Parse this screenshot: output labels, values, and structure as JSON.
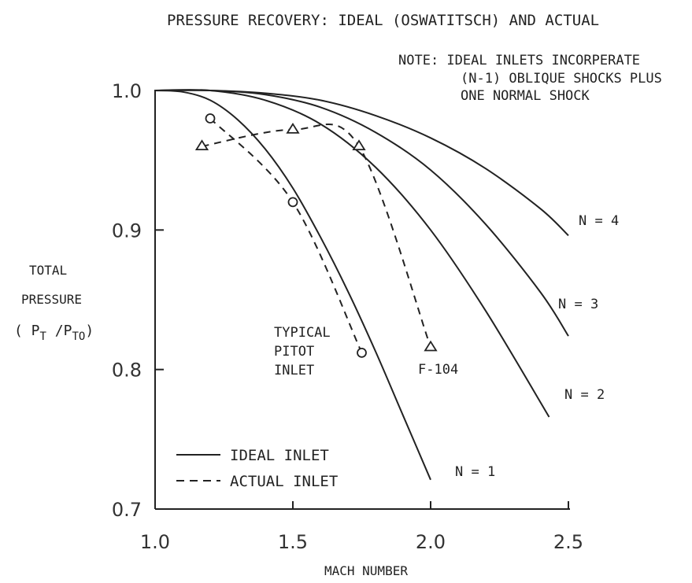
{
  "chart_data": {
    "type": "line",
    "title": "PRESSURE RECOVERY:  IDEAL (OSWATITSCH) AND ACTUAL",
    "note": [
      "NOTE:  IDEAL INLETS INCORPERATE",
      "(N-1) OBLIQUE SHOCKS  PLUS",
      "ONE NORMAL SHOCK"
    ],
    "xlabel": "MACH NUMBER",
    "ylabel": [
      "TOTAL",
      "PRESSURE",
      "( P",
      "T",
      " /P",
      "TO",
      ")"
    ],
    "xlim": [
      1.0,
      2.5
    ],
    "ylim": [
      0.7,
      1.0
    ],
    "xticks": [
      1.0,
      1.5,
      2.0,
      2.5
    ],
    "xtick_labels": [
      "1.0",
      "1.5",
      "2.0",
      "2.5"
    ],
    "yticks": [
      0.7,
      0.8,
      0.9,
      1.0
    ],
    "ytick_labels": [
      "0.7",
      "0.8",
      "0.9",
      "1.0"
    ],
    "legend": {
      "placement": "bottom-left",
      "entries": [
        {
          "label": "IDEAL INLET",
          "style": "solid"
        },
        {
          "label": "ACTUAL INLET",
          "style": "dashed"
        }
      ]
    },
    "series": [
      {
        "name": "N = 1",
        "style": "solid",
        "x": [
          1.0,
          1.1,
          1.2,
          1.3,
          1.4,
          1.5,
          1.6,
          1.7,
          1.8,
          1.9,
          2.0
        ],
        "y": [
          1.0,
          0.999,
          0.993,
          0.979,
          0.958,
          0.93,
          0.895,
          0.856,
          0.813,
          0.767,
          0.721
        ]
      },
      {
        "name": "N = 2",
        "style": "solid",
        "x": [
          1.0,
          1.2,
          1.4,
          1.6,
          1.8,
          2.0,
          2.2,
          2.43
        ],
        "y": [
          1.0,
          1.0,
          0.993,
          0.976,
          0.945,
          0.9,
          0.842,
          0.766
        ]
      },
      {
        "name": "N = 3",
        "style": "solid",
        "x": [
          1.0,
          1.2,
          1.4,
          1.6,
          1.8,
          2.0,
          2.2,
          2.4,
          2.5
        ],
        "y": [
          1.0,
          1.0,
          0.997,
          0.988,
          0.97,
          0.943,
          0.904,
          0.855,
          0.824
        ]
      },
      {
        "name": "N = 4",
        "style": "solid",
        "x": [
          1.0,
          1.2,
          1.4,
          1.6,
          1.8,
          2.0,
          2.2,
          2.4,
          2.5
        ],
        "y": [
          1.0,
          1.0,
          0.998,
          0.993,
          0.982,
          0.966,
          0.944,
          0.915,
          0.896
        ]
      },
      {
        "name": "TYPICAL PITOT INLET",
        "style": "dashed",
        "marker": "circle",
        "x": [
          1.2,
          1.5,
          1.75
        ],
        "y": [
          0.98,
          0.92,
          0.812
        ]
      },
      {
        "name": "F-104",
        "style": "dashed",
        "marker": "triangle",
        "x": [
          1.17,
          1.5,
          1.74,
          2.0
        ],
        "y": [
          0.96,
          0.972,
          0.96,
          0.816
        ]
      }
    ],
    "annotations": [
      "N = 4",
      "N = 3",
      "N = 2",
      "N = 1",
      "TYPICAL",
      "PITOT",
      "INLET",
      "F-104"
    ]
  }
}
